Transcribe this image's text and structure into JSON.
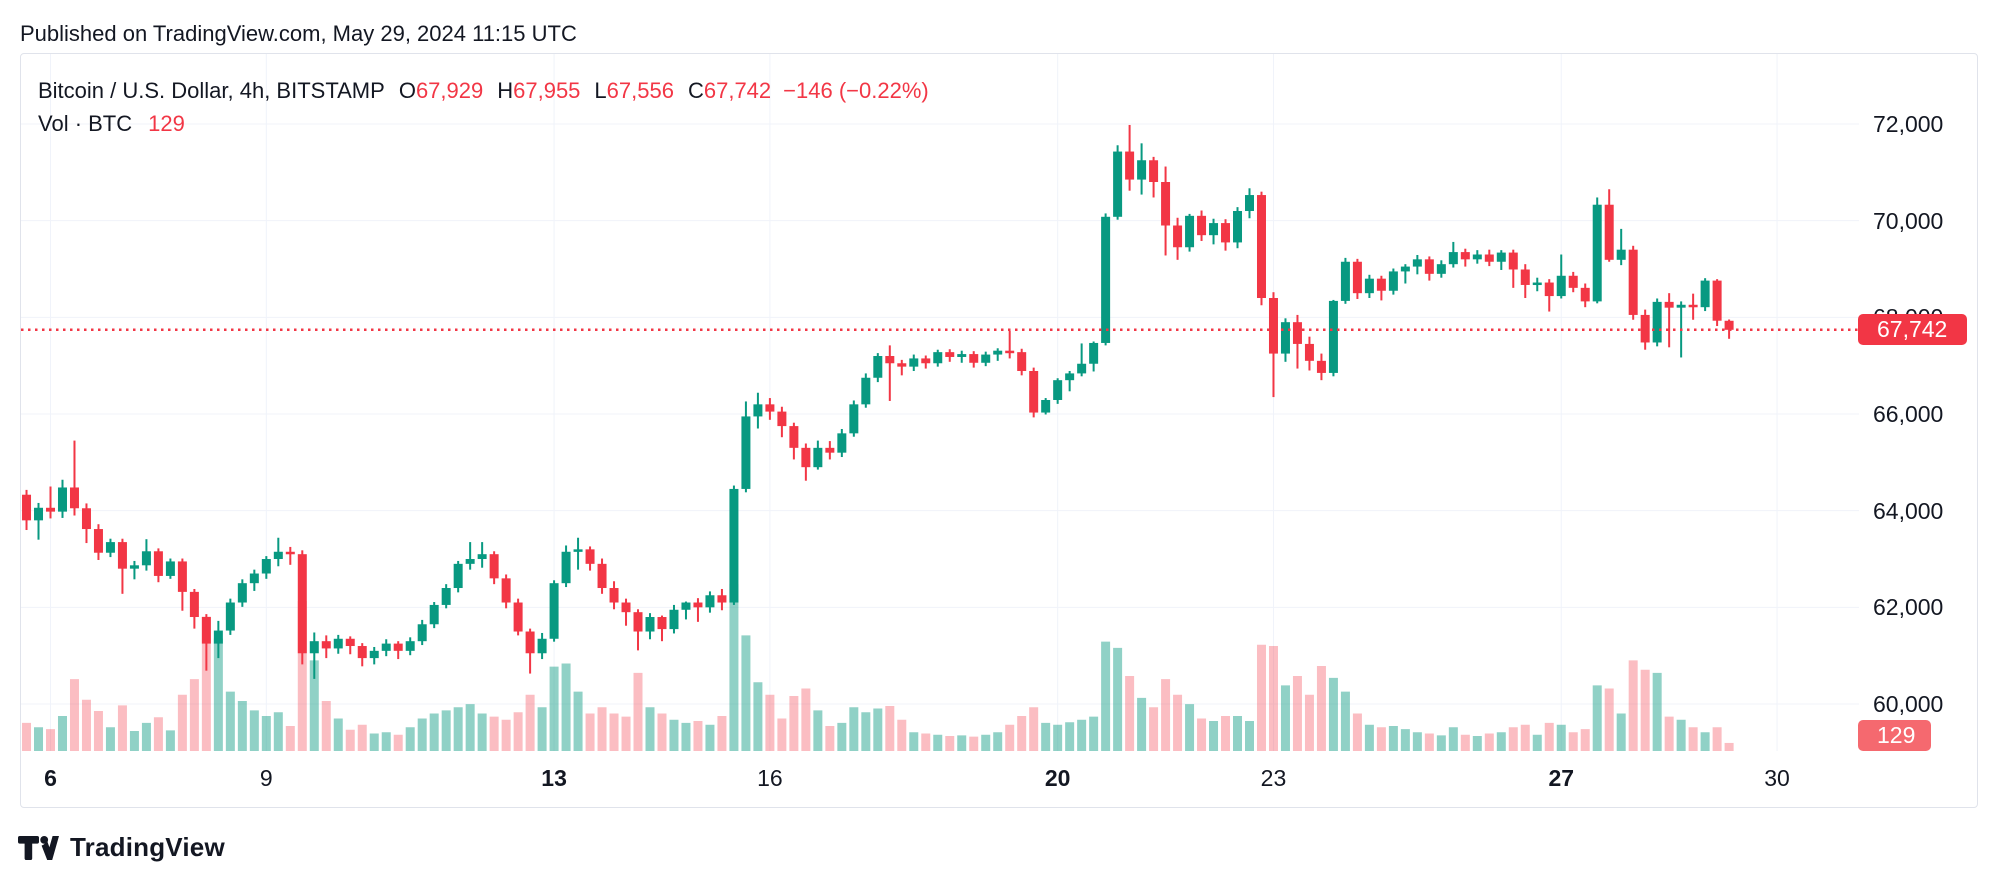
{
  "published_bar": {
    "text": "Published on TradingView.com, May 29, 2024 11:15 UTC"
  },
  "header": {
    "symbol_line": {
      "title": "Bitcoin / U.S. Dollar, 4h, BITSTAMP",
      "o_label": "O",
      "o_value": "67,929",
      "h_label": "H",
      "h_value": "67,955",
      "l_label": "L",
      "l_value": "67,556",
      "c_label": "C",
      "c_value": "67,742",
      "change": "−146 (−0.22%)"
    },
    "volume_line": {
      "label": "Vol · BTC",
      "value": "129"
    }
  },
  "price_scale": {
    "last_price_label": "67,742",
    "last_volume_label": "129"
  },
  "watermark": "TradingView",
  "colors": {
    "up": "#089981",
    "down": "#f23645",
    "vol_up": "rgba(8,153,129,0.45)",
    "vol_down": "rgba(242,54,69,0.33)",
    "grid": "#f0f3fa",
    "text": "#131722",
    "accent_red": "#f23645",
    "vol_badge_bg": "#f5696f",
    "card_border": "#e0e3eb"
  },
  "axis": {
    "y_ticks": [
      {
        "label": "72,000",
        "value": 72000
      },
      {
        "label": "70,000",
        "value": 70000
      },
      {
        "label": "68,000",
        "value": 68000
      },
      {
        "label": "66,000",
        "value": 66000
      },
      {
        "label": "64,000",
        "value": 64000
      },
      {
        "label": "62,000",
        "value": 62000
      },
      {
        "label": "60,000",
        "value": 60000
      }
    ],
    "x_ticks": [
      {
        "label": "6",
        "candle_index": 2,
        "bold": true
      },
      {
        "label": "9",
        "candle_index": 20,
        "bold": false
      },
      {
        "label": "13",
        "candle_index": 44,
        "bold": true
      },
      {
        "label": "16",
        "candle_index": 62,
        "bold": false
      },
      {
        "label": "20",
        "candle_index": 86,
        "bold": true
      },
      {
        "label": "23",
        "candle_index": 104,
        "bold": false
      },
      {
        "label": "27",
        "candle_index": 128,
        "bold": true
      },
      {
        "label": "30",
        "candle_index": 146,
        "bold": false
      }
    ]
  },
  "chart_data": {
    "type": "candlestick",
    "title": "Bitcoin / U.S. Dollar",
    "symbol": "BTCUSD",
    "exchange": "BITSTAMP",
    "interval": "4h",
    "timezone": "UTC",
    "start_time_utc": "2024-05-05 16:00",
    "step_hours": 4,
    "y_axis_ticks": [
      72000,
      70000,
      68000,
      66000,
      64000,
      62000,
      60000
    ],
    "y_visible_range": [
      60000,
      72500
    ],
    "x_axis_day_labels": [
      "6",
      "9",
      "13",
      "16",
      "20",
      "23",
      "27",
      "30"
    ],
    "grid": true,
    "last_price_line": 67742,
    "last_candle": {
      "open": 67929,
      "high": 67955,
      "low": 67556,
      "close": 67742,
      "change": -146,
      "change_pct": -0.22,
      "volume_btc": 129
    },
    "candles_format": [
      "open",
      "high",
      "low",
      "close",
      "volume"
    ],
    "candles": [
      [
        64330,
        64430,
        63600,
        63800,
        450
      ],
      [
        63800,
        64160,
        63400,
        64060,
        380
      ],
      [
        64060,
        64500,
        63840,
        63980,
        350
      ],
      [
        63980,
        64640,
        63850,
        64480,
        560
      ],
      [
        64480,
        65450,
        63900,
        64050,
        1150
      ],
      [
        64050,
        64150,
        63330,
        63620,
        820
      ],
      [
        63620,
        63720,
        62980,
        63130,
        640
      ],
      [
        63130,
        63420,
        63040,
        63350,
        380
      ],
      [
        63350,
        63420,
        62280,
        62800,
        730
      ],
      [
        62800,
        62960,
        62580,
        62870,
        320
      ],
      [
        62870,
        63410,
        62760,
        63160,
        450
      ],
      [
        63160,
        63220,
        62520,
        62650,
        540
      ],
      [
        62650,
        63010,
        62590,
        62950,
        330
      ],
      [
        62950,
        63010,
        61930,
        62320,
        900
      ],
      [
        62320,
        62380,
        61560,
        61800,
        1150
      ],
      [
        61800,
        61860,
        60690,
        61250,
        2150
      ],
      [
        61250,
        61720,
        60950,
        61520,
        1800
      ],
      [
        61520,
        62180,
        61430,
        62100,
        950
      ],
      [
        62100,
        62580,
        62010,
        62500,
        800
      ],
      [
        62500,
        62780,
        62340,
        62700,
        650
      ],
      [
        62700,
        63060,
        62590,
        63000,
        560
      ],
      [
        63000,
        63440,
        62850,
        63150,
        620
      ],
      [
        63150,
        63250,
        62880,
        63100,
        400
      ],
      [
        63100,
        63180,
        60820,
        61050,
        2400
      ],
      [
        61050,
        61480,
        60520,
        61300,
        1450
      ],
      [
        61300,
        61420,
        60950,
        61150,
        800
      ],
      [
        61150,
        61430,
        61040,
        61350,
        520
      ],
      [
        61350,
        61400,
        61030,
        61200,
        340
      ],
      [
        61200,
        61260,
        60780,
        60950,
        420
      ],
      [
        60950,
        61180,
        60820,
        61100,
        280
      ],
      [
        61100,
        61340,
        60990,
        61250,
        300
      ],
      [
        61250,
        61300,
        60930,
        61100,
        260
      ],
      [
        61100,
        61380,
        61010,
        61300,
        380
      ],
      [
        61300,
        61740,
        61220,
        61650,
        520
      ],
      [
        61650,
        62110,
        61570,
        62050,
        600
      ],
      [
        62050,
        62480,
        61980,
        62400,
        650
      ],
      [
        62400,
        62960,
        62310,
        62900,
        700
      ],
      [
        62900,
        63350,
        62780,
        63000,
        750
      ],
      [
        63000,
        63350,
        62820,
        63100,
        600
      ],
      [
        63100,
        63160,
        62480,
        62600,
        550
      ],
      [
        62600,
        62680,
        61980,
        62100,
        500
      ],
      [
        62100,
        62180,
        61420,
        61500,
        620
      ],
      [
        61500,
        61560,
        60630,
        61050,
        900
      ],
      [
        61050,
        61470,
        60930,
        61350,
        700
      ],
      [
        61350,
        62560,
        61290,
        62500,
        1350
      ],
      [
        62500,
        63280,
        62420,
        63150,
        1400
      ],
      [
        63150,
        63440,
        62780,
        63200,
        950
      ],
      [
        63200,
        63260,
        62760,
        62900,
        600
      ],
      [
        62900,
        63010,
        62280,
        62400,
        700
      ],
      [
        62400,
        62540,
        61960,
        62100,
        600
      ],
      [
        62100,
        62180,
        61620,
        61900,
        550
      ],
      [
        61900,
        61960,
        61110,
        61500,
        1250
      ],
      [
        61500,
        61880,
        61340,
        61800,
        700
      ],
      [
        61800,
        61830,
        61300,
        61550,
        600
      ],
      [
        61550,
        62050,
        61460,
        61950,
        500
      ],
      [
        61950,
        62120,
        61750,
        62100,
        450
      ],
      [
        62100,
        62190,
        61700,
        62000,
        480
      ],
      [
        62000,
        62330,
        61890,
        62250,
        420
      ],
      [
        62250,
        62380,
        61940,
        62100,
        560
      ],
      [
        62100,
        64520,
        62050,
        64450,
        2670
      ],
      [
        64450,
        66260,
        64380,
        65950,
        1850
      ],
      [
        65950,
        66440,
        65700,
        66200,
        1100
      ],
      [
        66200,
        66330,
        65880,
        66050,
        900
      ],
      [
        66050,
        66150,
        65520,
        65750,
        520
      ],
      [
        65750,
        65820,
        65060,
        65300,
        880
      ],
      [
        65300,
        65390,
        64620,
        64900,
        1000
      ],
      [
        64900,
        65450,
        64850,
        65300,
        650
      ],
      [
        65300,
        65440,
        65060,
        65200,
        400
      ],
      [
        65200,
        65690,
        65110,
        65600,
        450
      ],
      [
        65600,
        66280,
        65530,
        66200,
        700
      ],
      [
        66200,
        66840,
        66130,
        66750,
        620
      ],
      [
        66750,
        67260,
        66660,
        67200,
        680
      ],
      [
        67200,
        67420,
        66270,
        67050,
        720
      ],
      [
        67050,
        67120,
        66800,
        66980,
        500
      ],
      [
        66980,
        67230,
        66890,
        67150,
        300
      ],
      [
        67150,
        67210,
        66940,
        67050,
        280
      ],
      [
        67050,
        67330,
        66980,
        67280,
        260
      ],
      [
        67280,
        67340,
        67080,
        67180,
        240
      ],
      [
        67180,
        67310,
        67060,
        67240,
        250
      ],
      [
        67240,
        67300,
        66960,
        67060,
        230
      ],
      [
        67060,
        67290,
        66990,
        67230,
        260
      ],
      [
        67230,
        67360,
        67100,
        67310,
        300
      ],
      [
        67310,
        67720,
        67150,
        67280,
        420
      ],
      [
        67280,
        67350,
        66800,
        66890,
        560
      ],
      [
        66890,
        66960,
        65930,
        66030,
        700
      ],
      [
        66030,
        66330,
        65990,
        66290,
        450
      ],
      [
        66290,
        66740,
        66210,
        66700,
        420
      ],
      [
        66700,
        66890,
        66470,
        66840,
        460
      ],
      [
        66840,
        67460,
        66780,
        67040,
        500
      ],
      [
        67040,
        67500,
        66880,
        67470,
        550
      ],
      [
        67470,
        70150,
        67420,
        70080,
        1750
      ],
      [
        70080,
        71560,
        70020,
        71430,
        1650
      ],
      [
        71430,
        71980,
        70620,
        70850,
        1200
      ],
      [
        70850,
        71600,
        70540,
        71250,
        850
      ],
      [
        71250,
        71320,
        70480,
        70800,
        700
      ],
      [
        70800,
        71120,
        69280,
        69900,
        1150
      ],
      [
        69900,
        70060,
        69190,
        69450,
        900
      ],
      [
        69450,
        70140,
        69360,
        70100,
        750
      ],
      [
        70100,
        70210,
        69580,
        69700,
        520
      ],
      [
        69700,
        70040,
        69510,
        69950,
        480
      ],
      [
        69950,
        70030,
        69380,
        69550,
        560
      ],
      [
        69550,
        70280,
        69430,
        70200,
        560
      ],
      [
        70200,
        70670,
        70050,
        70530,
        480
      ],
      [
        70530,
        70600,
        68250,
        68400,
        1700
      ],
      [
        68400,
        68520,
        66350,
        67250,
        1680
      ],
      [
        67250,
        67980,
        67080,
        67900,
        1050
      ],
      [
        67900,
        68050,
        66940,
        67450,
        1200
      ],
      [
        67450,
        67600,
        66900,
        67100,
        900
      ],
      [
        67100,
        67250,
        66700,
        66850,
        1360
      ],
      [
        66850,
        68360,
        66780,
        68340,
        1170
      ],
      [
        68340,
        69230,
        68280,
        69150,
        950
      ],
      [
        69150,
        69210,
        68380,
        68500,
        600
      ],
      [
        68500,
        68880,
        68400,
        68800,
        420
      ],
      [
        68800,
        68860,
        68350,
        68550,
        380
      ],
      [
        68550,
        69010,
        68470,
        68950,
        400
      ],
      [
        68950,
        69100,
        68700,
        69050,
        350
      ],
      [
        69050,
        69290,
        68890,
        69200,
        300
      ],
      [
        69200,
        69260,
        68760,
        68900,
        280
      ],
      [
        68900,
        69180,
        68820,
        69100,
        250
      ],
      [
        69100,
        69560,
        69030,
        69350,
        380
      ],
      [
        69350,
        69420,
        69050,
        69200,
        260
      ],
      [
        69200,
        69390,
        69110,
        69300,
        240
      ],
      [
        69300,
        69400,
        69060,
        69150,
        280
      ],
      [
        69150,
        69390,
        68980,
        69340,
        300
      ],
      [
        69340,
        69400,
        68610,
        68990,
        380
      ],
      [
        68990,
        69100,
        68400,
        68670,
        420
      ],
      [
        68670,
        68820,
        68540,
        68720,
        260
      ],
      [
        68720,
        68790,
        68120,
        68440,
        450
      ],
      [
        68440,
        69300,
        68390,
        68860,
        420
      ],
      [
        68860,
        68940,
        68520,
        68610,
        300
      ],
      [
        68610,
        68700,
        68210,
        68330,
        350
      ],
      [
        68330,
        70480,
        68290,
        70330,
        1050
      ],
      [
        70330,
        70650,
        69150,
        69190,
        1000
      ],
      [
        69190,
        69830,
        69080,
        69400,
        600
      ],
      [
        69400,
        69480,
        67950,
        68050,
        1450
      ],
      [
        68050,
        68160,
        67330,
        67480,
        1300
      ],
      [
        67480,
        68390,
        67400,
        68320,
        1250
      ],
      [
        68320,
        68500,
        67380,
        68200,
        550
      ],
      [
        68200,
        68330,
        67170,
        68260,
        500
      ],
      [
        68260,
        68490,
        67950,
        68210,
        380
      ],
      [
        68210,
        68810,
        68130,
        68760,
        300
      ],
      [
        68760,
        68790,
        67820,
        67930,
        380
      ],
      [
        67929,
        67955,
        67556,
        67742,
        129
      ]
    ]
  }
}
